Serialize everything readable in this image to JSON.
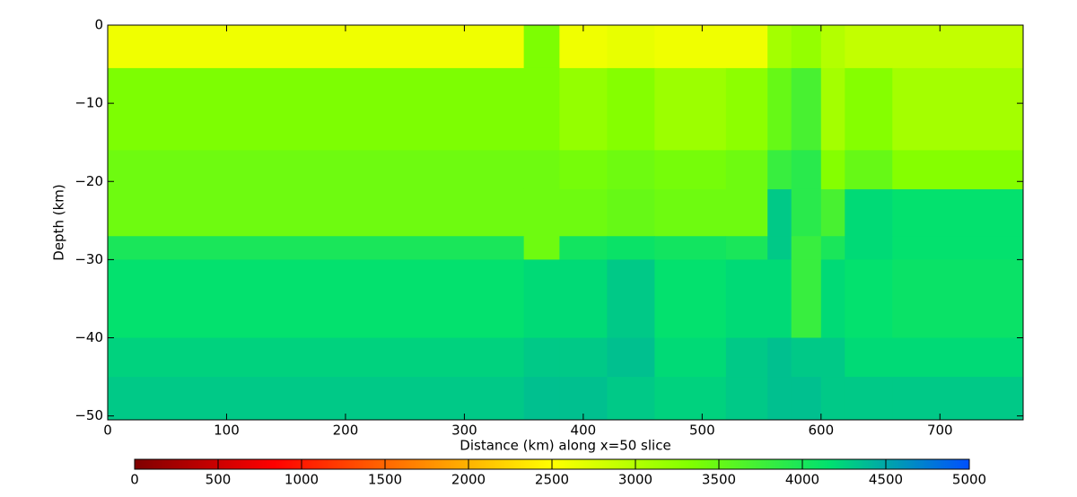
{
  "chart_data": {
    "type": "heatmap",
    "xlabel": "Distance (km) along x=50 slice",
    "ylabel": "Depth (km)",
    "x_edges": [
      0,
      350,
      380,
      420,
      460,
      520,
      555,
      575,
      600,
      620,
      660,
      770
    ],
    "y_edges": [
      0,
      -5.5,
      -16,
      -21,
      -27,
      -30,
      -40,
      -45,
      -50.5
    ],
    "values": [
      [
        2600,
        3350,
        2600,
        2650,
        2600,
        2600,
        3100,
        3200,
        3000,
        2900,
        2900
      ],
      [
        3350,
        3350,
        3200,
        3300,
        3150,
        3250,
        3500,
        3700,
        3100,
        3300,
        3100
      ],
      [
        3450,
        3450,
        3400,
        3450,
        3400,
        3450,
        3800,
        3900,
        3300,
        3500,
        3300
      ],
      [
        3450,
        3450,
        3450,
        3500,
        3450,
        3450,
        4300,
        3900,
        3700,
        4200,
        4150
      ],
      [
        4000,
        3450,
        4050,
        4100,
        4050,
        4000,
        4300,
        3800,
        4000,
        4200,
        4150
      ],
      [
        4150,
        4200,
        4200,
        4300,
        4150,
        4200,
        4200,
        3800,
        4200,
        4150,
        4100
      ],
      [
        4250,
        4300,
        4300,
        4350,
        4200,
        4300,
        4350,
        4300,
        4300,
        4200,
        4200
      ],
      [
        4300,
        4350,
        4350,
        4300,
        4250,
        4300,
        4350,
        4350,
        4300,
        4300,
        4300
      ]
    ],
    "xlim": [
      0,
      770
    ],
    "ylim": [
      -50.5,
      0
    ],
    "xticks": [
      0,
      100,
      200,
      300,
      400,
      500,
      600,
      700
    ],
    "yticks": [
      0,
      {
        "value": -10,
        "label": "−10"
      },
      {
        "value": -20,
        "label": "−20"
      },
      {
        "value": -30,
        "label": "−30"
      },
      {
        "value": -40,
        "label": "−40"
      },
      {
        "value": -50,
        "label": "−50"
      }
    ],
    "colormap": [
      "#7f0000",
      "#ff0000",
      "#ff8000",
      "#ffff00",
      "#80ff00",
      "#00e070",
      "#0050ff"
    ],
    "clim": [
      0,
      5000
    ],
    "cticks": [
      0,
      500,
      1000,
      1500,
      2000,
      2500,
      3000,
      3500,
      4000,
      4500,
      5000
    ]
  }
}
